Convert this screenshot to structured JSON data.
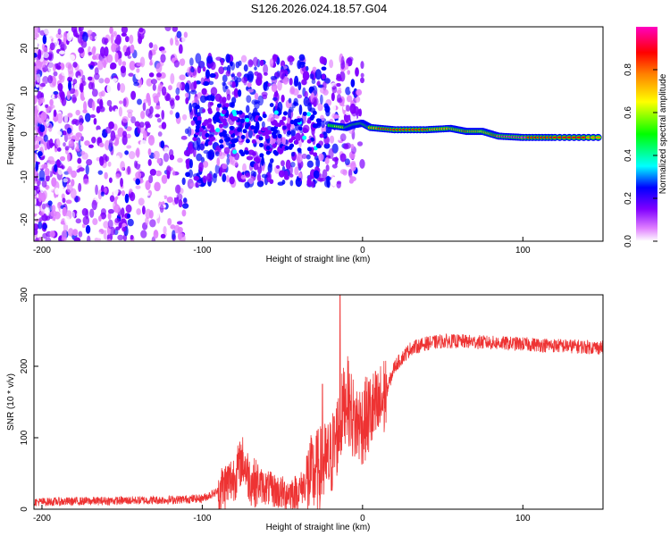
{
  "title": "S126.2026.024.18.57.G04",
  "chart_data": [
    {
      "type": "heatmap",
      "name": "spectrogram",
      "xlabel": "Height of straight line (km)",
      "ylabel": "Frequency (Hz)",
      "xlim": [
        -205,
        150
      ],
      "ylim": [
        -25,
        25
      ],
      "xticks": [
        -200,
        -100,
        0,
        100
      ],
      "xtick_labels": [
        "-200",
        "-100",
        "0",
        "100"
      ],
      "yticks": [
        20,
        10,
        0,
        -10,
        -20
      ],
      "ytick_labels": [
        "20",
        "10",
        "0",
        "-10",
        "-20"
      ],
      "colorbar": {
        "label": "Normalized spectral amplitude",
        "range": [
          0,
          1
        ],
        "ticks": [
          0.0,
          0.2,
          0.4,
          0.6,
          0.8
        ],
        "tick_labels": [
          "0.0",
          "0.2",
          "0.4",
          "0.6",
          "0.8"
        ],
        "colors": [
          "#ffffff",
          "#e080ff",
          "#8000ff",
          "#0000ff",
          "#00ffff",
          "#00ff00",
          "#ffff00",
          "#ff8000",
          "#ff0000",
          "#ff00c0"
        ]
      },
      "ridge_line": {
        "x": [
          -20,
          -10,
          -5,
          0,
          5,
          20,
          40,
          55,
          65,
          75,
          85,
          100,
          120,
          150
        ],
        "y": [
          2,
          1.5,
          2.2,
          2.5,
          1.5,
          1.0,
          1.0,
          1.3,
          0.6,
          0.6,
          -0.5,
          -0.8,
          -0.8,
          -0.8
        ],
        "amplitude": [
          0.55,
          0.75,
          0.95,
          0.95,
          0.8,
          0.9,
          0.85,
          0.75,
          0.85,
          0.7,
          0.95,
          0.95,
          0.9,
          0.8
        ]
      },
      "noise_region_x": [
        -205,
        -20
      ]
    },
    {
      "type": "line",
      "name": "snr",
      "xlabel": "Height of straight line (km)",
      "ylabel": "SNR (10 * v/v)",
      "xlim": [
        -205,
        150
      ],
      "ylim": [
        0,
        300
      ],
      "xticks": [
        -200,
        -100,
        0,
        100
      ],
      "xtick_labels": [
        "-200",
        "-100",
        "0",
        "100"
      ],
      "yticks": [
        0,
        100,
        200,
        300
      ],
      "ytick_labels": [
        "0",
        "100",
        "200",
        "300"
      ],
      "color": "#ee3333",
      "series": {
        "x": [
          -205,
          -180,
          -150,
          -120,
          -100,
          -90,
          -80,
          -75,
          -70,
          -60,
          -50,
          -40,
          -30,
          -20,
          -15,
          -10,
          -5,
          0,
          5,
          10,
          15,
          20,
          30,
          40,
          50,
          60,
          70,
          80,
          90,
          100,
          110,
          120,
          130,
          140,
          150
        ],
        "y": [
          10,
          11,
          12,
          13,
          15,
          25,
          45,
          70,
          40,
          30,
          22,
          25,
          50,
          70,
          110,
          160,
          120,
          120,
          135,
          140,
          165,
          200,
          225,
          232,
          235,
          235,
          234,
          233,
          232,
          231,
          230,
          229,
          228,
          227,
          226
        ]
      },
      "peaks": [
        {
          "x": -14,
          "y": 300
        },
        {
          "x": -25,
          "y": 175
        }
      ]
    }
  ]
}
